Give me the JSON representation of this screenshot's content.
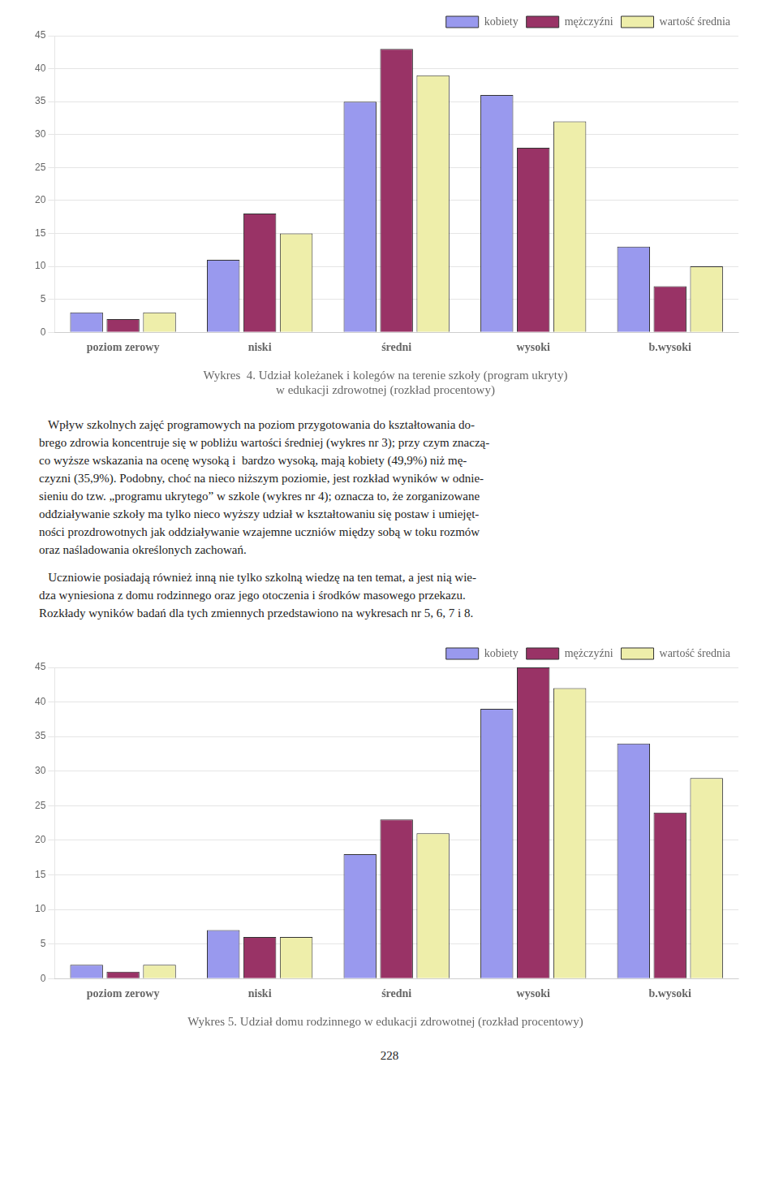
{
  "chart_data": [
    {
      "type": "bar",
      "title": [
        "Wykres  4. Udział koleżanek i kolegów na terenie szkoły (program ukryty)",
        "w edukacji zdrowotnej (rozkład procentowy)"
      ],
      "categories": [
        "poziom zerowy",
        "niski",
        "średni",
        "wysoki",
        "b.wysoki"
      ],
      "series": [
        {
          "name": "kobiety",
          "color": "#9999EE",
          "values": [
            3,
            11,
            35,
            36,
            13
          ]
        },
        {
          "name": "mężczyźni",
          "color": "#993366",
          "values": [
            2,
            18,
            43,
            28,
            7
          ]
        },
        {
          "name": "wartość średnia",
          "color": "#EEEEAA",
          "values": [
            3,
            15,
            39,
            32,
            10
          ]
        }
      ],
      "ylim": [
        0,
        45
      ],
      "yticks": [
        0,
        5,
        10,
        15,
        20,
        25,
        30,
        35,
        40,
        45
      ],
      "grid": true,
      "legend": "upper right"
    },
    {
      "type": "bar",
      "title": "Wykres 5. Udział domu rodzinnego w edukacji zdrowotnej (rozkład procentowy)",
      "categories": [
        "poziom zerowy",
        "niski",
        "średni",
        "wysoki",
        "b.wysoki"
      ],
      "series": [
        {
          "name": "kobiety",
          "color": "#9999EE",
          "values": [
            2,
            7,
            18,
            39,
            34
          ]
        },
        {
          "name": "mężczyźni",
          "color": "#993366",
          "values": [
            1,
            6,
            23,
            45,
            24
          ]
        },
        {
          "name": "wartość średnia",
          "color": "#EEEEAA",
          "values": [
            2,
            6,
            21,
            42,
            29
          ]
        }
      ],
      "ylim": [
        0,
        45
      ],
      "yticks": [
        0,
        5,
        10,
        15,
        20,
        25,
        30,
        35,
        40,
        45
      ],
      "grid": true,
      "legend": "upper right"
    }
  ],
  "body_text": [
    [
      "   Wpływ szkolnych zajęć programowych na poziom przygotowania do kształtowania do-",
      "brego zdrowia koncentruje się w pobliżu wartości średniej (wykres nr 3); przy czym znaczą-",
      "co wyższe wskazania na ocenę wysoką i  bardzo wysoką, mają kobiety (49,9%) niż mę-",
      "czyzni (35,9%). Podobny, choć na nieco niższym poziomie, jest rozkład wyników w odnie-",
      "sieniu do tzw. „programu ukrytego” w szkole (wykres nr 4); oznacza to, że zorganizowane",
      "odđziaływanie szkoły ma tylko nieco wyższy udział w kształtowaniu się postaw i umiejęt-",
      "ności prozdrowotnych jak oddziaływanie wzajemne uczniów między sobą w toku rozmów",
      "oraz naśladowania określonych zachowań."
    ],
    [
      "   Uczniowie posiadają również inną nie tylko szkolną wiedzę na ten temat, a jest nią wie-",
      "dza wyniesiona z domu rodzinnego oraz jego otoczenia i środków masowego przekazu.",
      "Rozkłady wyników badań dla tych zmiennych przedstawiono na wykresach nr 5, 6, 7 i 8."
    ]
  ],
  "page_number": "228"
}
